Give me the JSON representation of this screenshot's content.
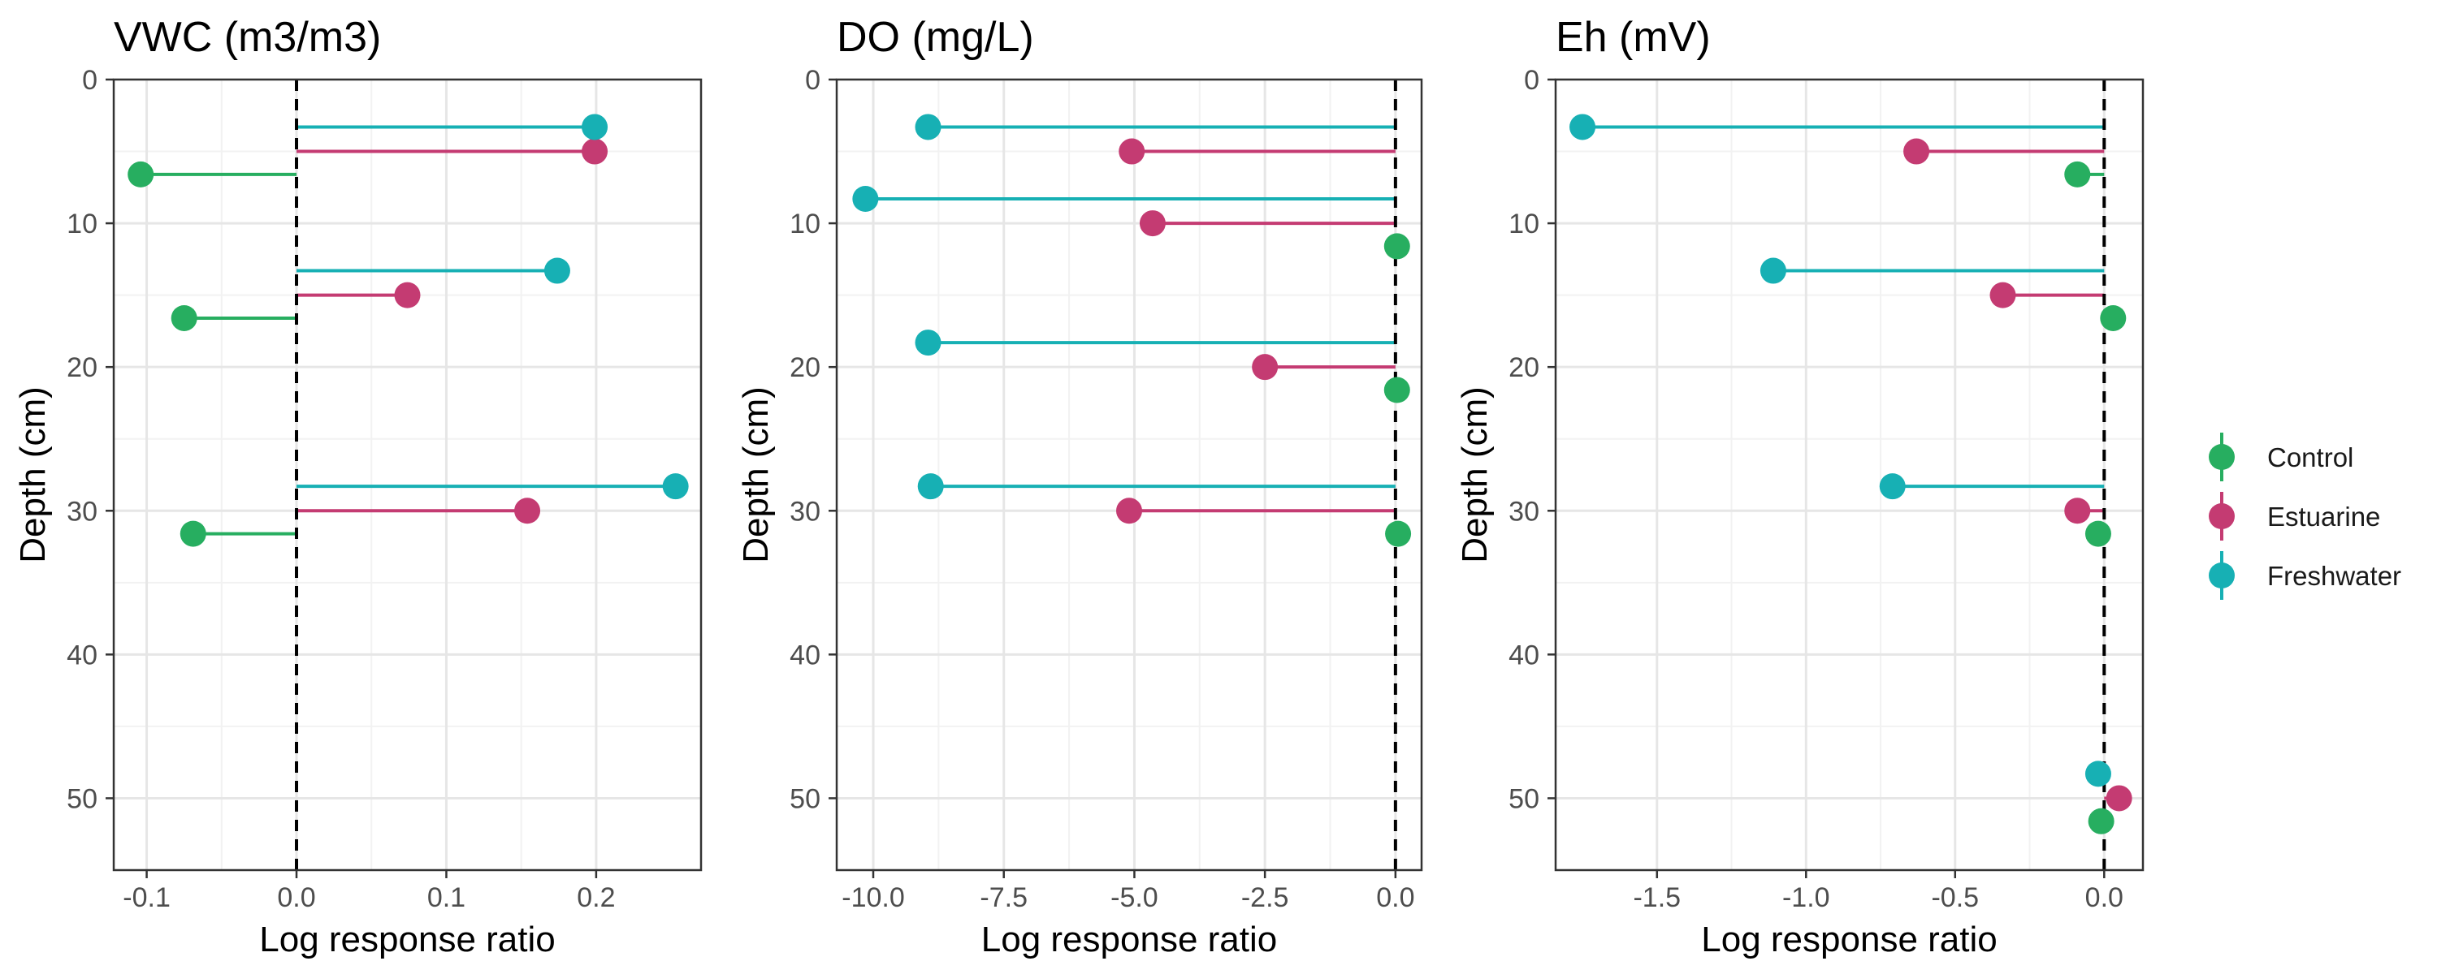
{
  "chart_data": [
    {
      "type": "lollipop",
      "title": "VWC (m3/m3)",
      "xlabel": "Log response ratio",
      "ylabel": "Depth (cm)",
      "xlim": [
        -0.122,
        0.27
      ],
      "ylim": [
        0,
        55
      ],
      "y_reversed": true,
      "x_ticks": [
        -0.1,
        0.0,
        0.1,
        0.2
      ],
      "x_tick_labels": [
        "-0.1",
        "0.0",
        "0.1",
        "0.2"
      ],
      "y_ticks": [
        0,
        10,
        20,
        30,
        40,
        50
      ],
      "y_tick_labels": [
        "0",
        "10",
        "20",
        "30",
        "40",
        "50"
      ],
      "reference_line_x": 0,
      "grid": true,
      "series": [
        {
          "name": "Control",
          "points": [
            {
              "x": -0.104,
              "y": 6.6
            },
            {
              "x": -0.075,
              "y": 16.6
            },
            {
              "x": -0.069,
              "y": 31.6
            }
          ]
        },
        {
          "name": "Estuarine",
          "points": [
            {
              "x": 0.199,
              "y": 5
            },
            {
              "x": 0.074,
              "y": 15
            },
            {
              "x": 0.154,
              "y": 30
            }
          ]
        },
        {
          "name": "Freshwater",
          "points": [
            {
              "x": 0.199,
              "y": 3.3
            },
            {
              "x": 0.174,
              "y": 13.3
            },
            {
              "x": 0.253,
              "y": 28.3
            }
          ]
        }
      ]
    },
    {
      "type": "lollipop",
      "title": "DO (mg/L)",
      "xlabel": "Log response ratio",
      "ylabel": "Depth (cm)",
      "xlim": [
        -10.7,
        0.5
      ],
      "ylim": [
        0,
        55
      ],
      "y_reversed": true,
      "x_ticks": [
        -10,
        -7.5,
        -5,
        -2.5,
        0
      ],
      "x_tick_labels": [
        "-10.0",
        "-7.5",
        "-5.0",
        "-2.5",
        "0.0"
      ],
      "y_ticks": [
        0,
        10,
        20,
        30,
        40,
        50
      ],
      "y_tick_labels": [
        "0",
        "10",
        "20",
        "30",
        "40",
        "50"
      ],
      "reference_line_x": 0,
      "grid": true,
      "series": [
        {
          "name": "Control",
          "points": [
            {
              "x": 0.03,
              "y": 11.6
            },
            {
              "x": 0.03,
              "y": 21.6
            },
            {
              "x": 0.05,
              "y": 31.6
            }
          ]
        },
        {
          "name": "Estuarine",
          "points": [
            {
              "x": -5.05,
              "y": 5
            },
            {
              "x": -4.65,
              "y": 10
            },
            {
              "x": -2.5,
              "y": 20
            },
            {
              "x": -5.1,
              "y": 30
            }
          ]
        },
        {
          "name": "Freshwater",
          "points": [
            {
              "x": -8.95,
              "y": 3.3
            },
            {
              "x": -10.15,
              "y": 8.3
            },
            {
              "x": -8.95,
              "y": 18.3
            },
            {
              "x": -8.9,
              "y": 28.3
            }
          ]
        }
      ]
    },
    {
      "type": "lollipop",
      "title": "Eh (mV)",
      "xlabel": "Log response ratio",
      "ylabel": "Depth (cm)",
      "xlim": [
        -1.84,
        0.13
      ],
      "ylim": [
        0,
        55
      ],
      "y_reversed": true,
      "x_ticks": [
        -1.5,
        -1.0,
        -0.5,
        0.0
      ],
      "x_tick_labels": [
        "-1.5",
        "-1.0",
        "-0.5",
        "0.0"
      ],
      "y_ticks": [
        0,
        10,
        20,
        30,
        40,
        50
      ],
      "y_tick_labels": [
        "0",
        "10",
        "20",
        "30",
        "40",
        "50"
      ],
      "reference_line_x": 0,
      "grid": true,
      "series": [
        {
          "name": "Control",
          "points": [
            {
              "x": -0.09,
              "y": 6.6
            },
            {
              "x": 0.03,
              "y": 16.6
            },
            {
              "x": -0.02,
              "y": 31.6
            },
            {
              "x": -0.01,
              "y": 51.6
            }
          ]
        },
        {
          "name": "Estuarine",
          "points": [
            {
              "x": -0.63,
              "y": 5
            },
            {
              "x": -0.34,
              "y": 15
            },
            {
              "x": -0.09,
              "y": 30
            },
            {
              "x": 0.05,
              "y": 50
            }
          ]
        },
        {
          "name": "Freshwater",
          "points": [
            {
              "x": -1.75,
              "y": 3.3
            },
            {
              "x": -1.11,
              "y": 13.3
            },
            {
              "x": -0.71,
              "y": 28.3
            },
            {
              "x": -0.02,
              "y": 48.3
            }
          ]
        }
      ]
    }
  ],
  "legend": {
    "position": "right",
    "items": [
      {
        "label": "Control",
        "color": "#27ae60"
      },
      {
        "label": "Estuarine",
        "color": "#c43b72"
      },
      {
        "label": "Freshwater",
        "color": "#17b0b4"
      }
    ]
  },
  "colors": {
    "Control": "#27ae60",
    "Estuarine": "#c43b72",
    "Freshwater": "#17b0b4",
    "grid_major": "#e6e6e6",
    "grid_minor": "#f2f2f2",
    "panel_border": "#333333",
    "reference_line": "#000000"
  }
}
